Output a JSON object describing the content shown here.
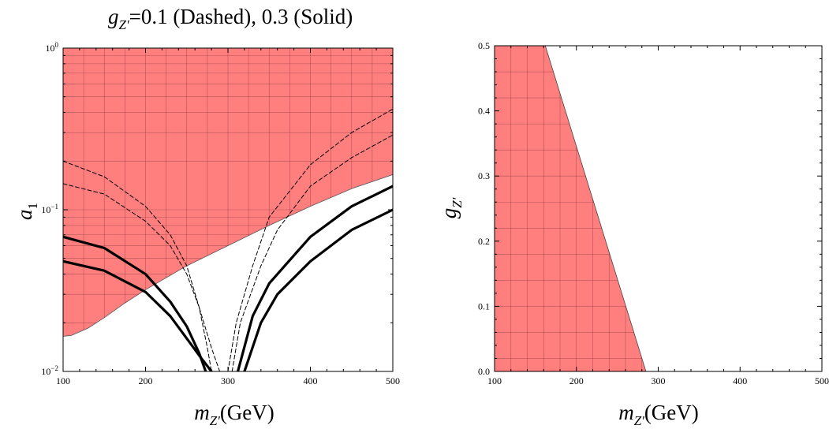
{
  "figure": {
    "title_symbol": "g",
    "title_subscript": "Z'",
    "title_text": "=0.1 (Dashed), 0.3 (Solid)"
  },
  "chart_data": [
    {
      "type": "area",
      "xlim": [
        100,
        500
      ],
      "ylim": [
        0.01,
        1
      ],
      "yscale": "log",
      "grid": true,
      "xticks": [
        100,
        200,
        300,
        400,
        500
      ],
      "xtick_labels": [
        "100",
        "200",
        "300",
        "400",
        "500"
      ],
      "yticks": [
        0.01,
        0.1,
        1
      ],
      "ytick_labels": [
        {
          "base": "10",
          "exp": "−2"
        },
        {
          "base": "10",
          "exp": "−1"
        },
        {
          "base": "10",
          "exp": "0"
        }
      ],
      "xlabel": {
        "symbol": "m",
        "subscript": "Z'",
        "unit": "(GeV)"
      },
      "ylabel": {
        "symbol": "a",
        "subscript": "1"
      },
      "excluded_region_color": "#ff7f7f",
      "excluded_region_boundary": {
        "x": [
          100,
          110,
          130,
          150,
          175,
          200,
          250,
          300,
          350,
          400,
          450,
          500
        ],
        "y": [
          0.0165,
          0.0167,
          0.0185,
          0.0215,
          0.0265,
          0.032,
          0.045,
          0.06,
          0.08,
          0.105,
          0.135,
          0.165
        ],
        "upper": 1
      },
      "series": [
        {
          "style": "dashed",
          "x": [
            100,
            150,
            200,
            230,
            250,
            265,
            275,
            280
          ],
          "y": [
            0.2,
            0.16,
            0.105,
            0.07,
            0.045,
            0.025,
            0.014,
            0.01
          ]
        },
        {
          "style": "dashed",
          "x": [
            100,
            150,
            200,
            230,
            250,
            265,
            280,
            290
          ],
          "y": [
            0.145,
            0.125,
            0.085,
            0.06,
            0.04,
            0.025,
            0.014,
            0.01
          ]
        },
        {
          "style": "dashed",
          "x": [
            300,
            310,
            330,
            350,
            400,
            450,
            500
          ],
          "y": [
            0.01,
            0.02,
            0.045,
            0.09,
            0.19,
            0.3,
            0.42
          ]
        },
        {
          "style": "dashed",
          "x": [
            305,
            315,
            340,
            360,
            400,
            450,
            500
          ],
          "y": [
            0.01,
            0.02,
            0.045,
            0.075,
            0.14,
            0.21,
            0.29
          ]
        },
        {
          "style": "solid",
          "x": [
            100,
            150,
            200,
            230,
            250,
            265,
            273
          ],
          "y": [
            0.068,
            0.058,
            0.04,
            0.027,
            0.019,
            0.013,
            0.01
          ]
        },
        {
          "style": "solid",
          "x": [
            100,
            150,
            200,
            230,
            250,
            268,
            280
          ],
          "y": [
            0.048,
            0.042,
            0.031,
            0.022,
            0.016,
            0.012,
            0.01
          ]
        },
        {
          "style": "solid",
          "x": [
            312,
            330,
            350,
            400,
            450,
            500
          ],
          "y": [
            0.01,
            0.022,
            0.035,
            0.068,
            0.105,
            0.14
          ]
        },
        {
          "style": "solid",
          "x": [
            320,
            340,
            360,
            400,
            450,
            500
          ],
          "y": [
            0.01,
            0.02,
            0.03,
            0.048,
            0.075,
            0.1
          ]
        }
      ]
    },
    {
      "type": "area",
      "xlim": [
        100,
        500
      ],
      "ylim": [
        0,
        0.5
      ],
      "grid": true,
      "xticks": [
        100,
        200,
        300,
        400,
        500
      ],
      "xtick_labels": [
        "100",
        "200",
        "300",
        "400",
        "500"
      ],
      "yticks": [
        0,
        0.1,
        0.2,
        0.3,
        0.4,
        0.5
      ],
      "ytick_labels": [
        "0.0",
        "0.1",
        "0.2",
        "0.3",
        "0.4",
        "0.5"
      ],
      "xlabel": {
        "symbol": "m",
        "subscript": "Z'",
        "unit": "(GeV)"
      },
      "ylabel": {
        "symbol": "g",
        "subscript": "Z'"
      },
      "excluded_region_color": "#ff7f7f",
      "excluded_region": {
        "x": [
          100,
          162,
          285,
          100
        ],
        "y": [
          0.5,
          0.5,
          0,
          0
        ]
      }
    }
  ]
}
